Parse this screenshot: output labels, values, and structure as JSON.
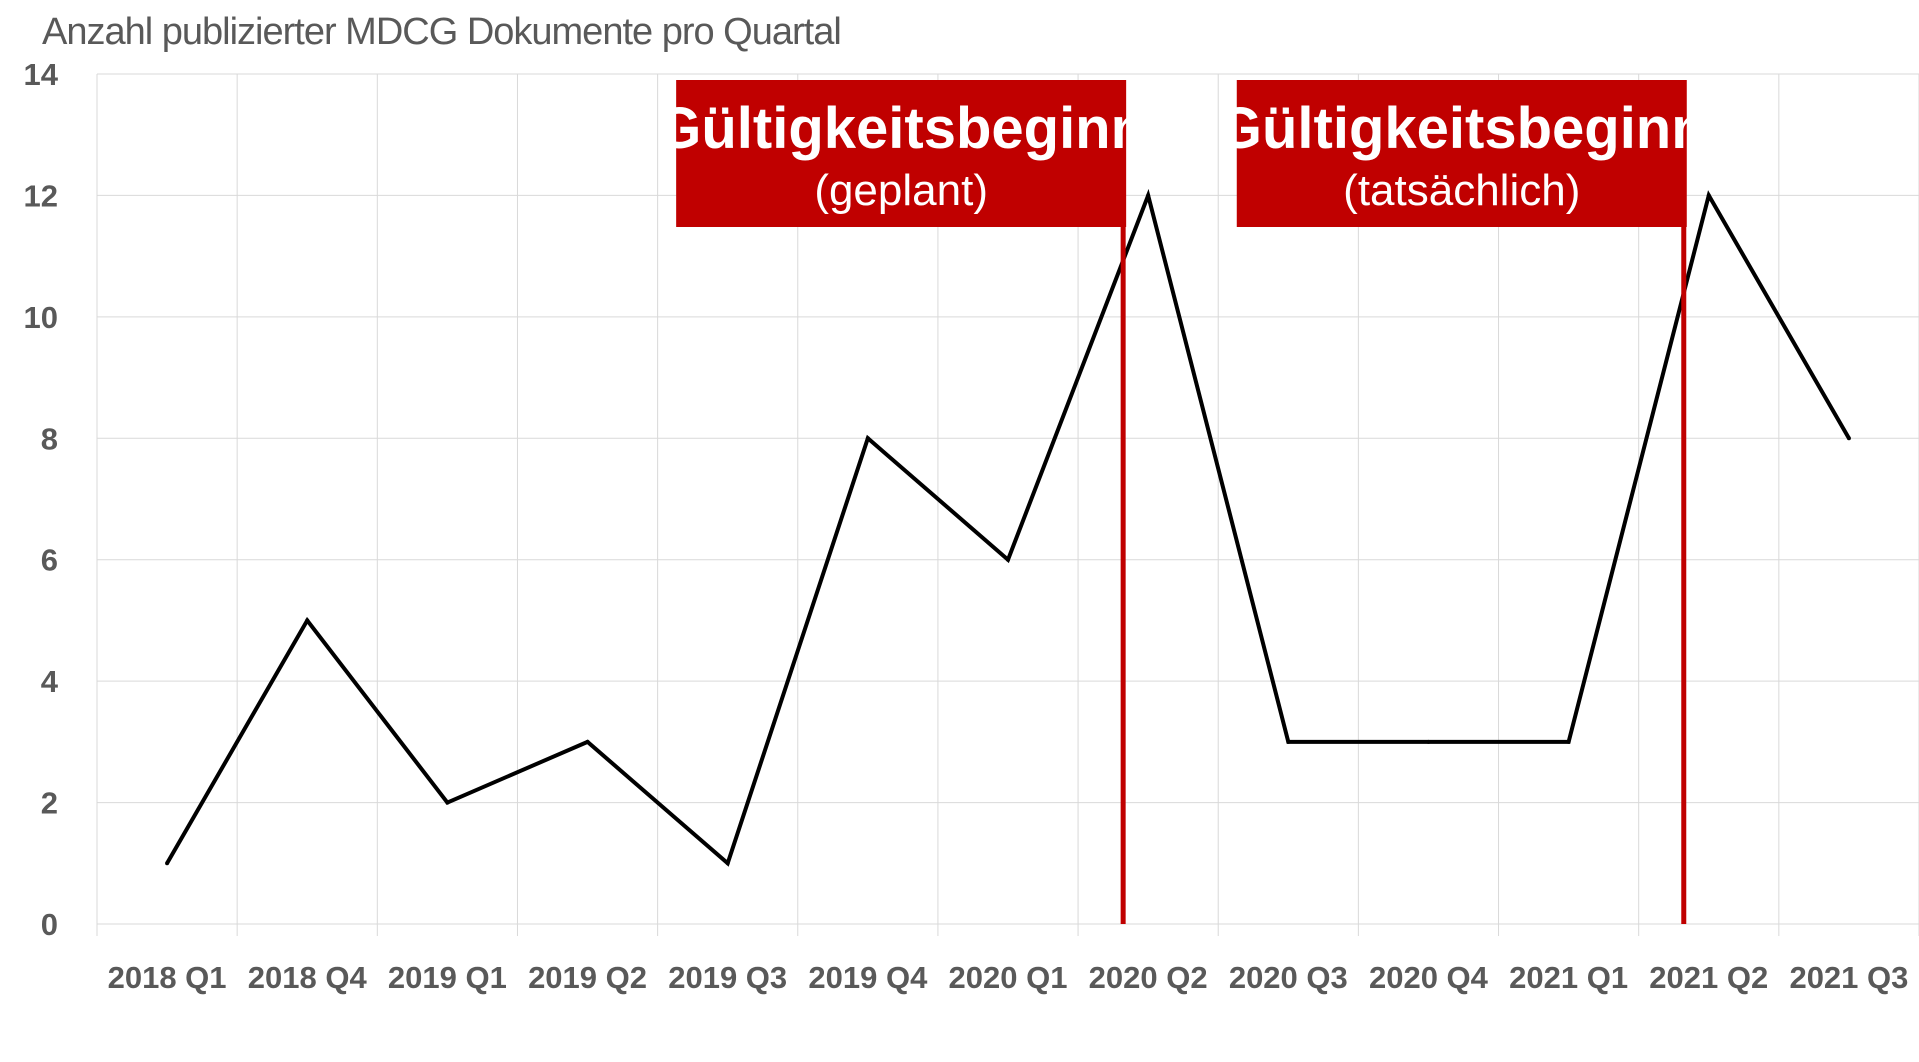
{
  "colors": {
    "accent": "#c00000",
    "line": "#000000",
    "grid": "#d9d9d9",
    "text": "#595959"
  },
  "chart_data": {
    "type": "line",
    "title": "Anzahl publizierter MDCG Dokumente pro Quartal",
    "xlabel": "",
    "ylabel": "",
    "ylim": [
      0,
      14
    ],
    "yticks": [
      0,
      2,
      4,
      6,
      8,
      10,
      12,
      14
    ],
    "grid": true,
    "legend": "none",
    "categories": [
      "2018 Q1",
      "2018 Q4",
      "2019 Q1",
      "2019 Q2",
      "2019 Q3",
      "2019 Q4",
      "2020 Q1",
      "2020 Q2",
      "2020 Q3",
      "2020 Q4",
      "2021 Q1",
      "2021 Q2",
      "2021 Q3"
    ],
    "series": [
      {
        "values": [
          1,
          5,
          2,
          3,
          1,
          8,
          6,
          12,
          3,
          3,
          3,
          12,
          8
        ]
      }
    ],
    "annotations": [
      {
        "title": "Gültigkeitsbeginn",
        "subtitle": "(geplant)",
        "x": "2020 Q2"
      },
      {
        "title": "Gültigkeitsbeginn",
        "subtitle": "(tatsächlich)",
        "x": "2021 Q2"
      }
    ]
  }
}
